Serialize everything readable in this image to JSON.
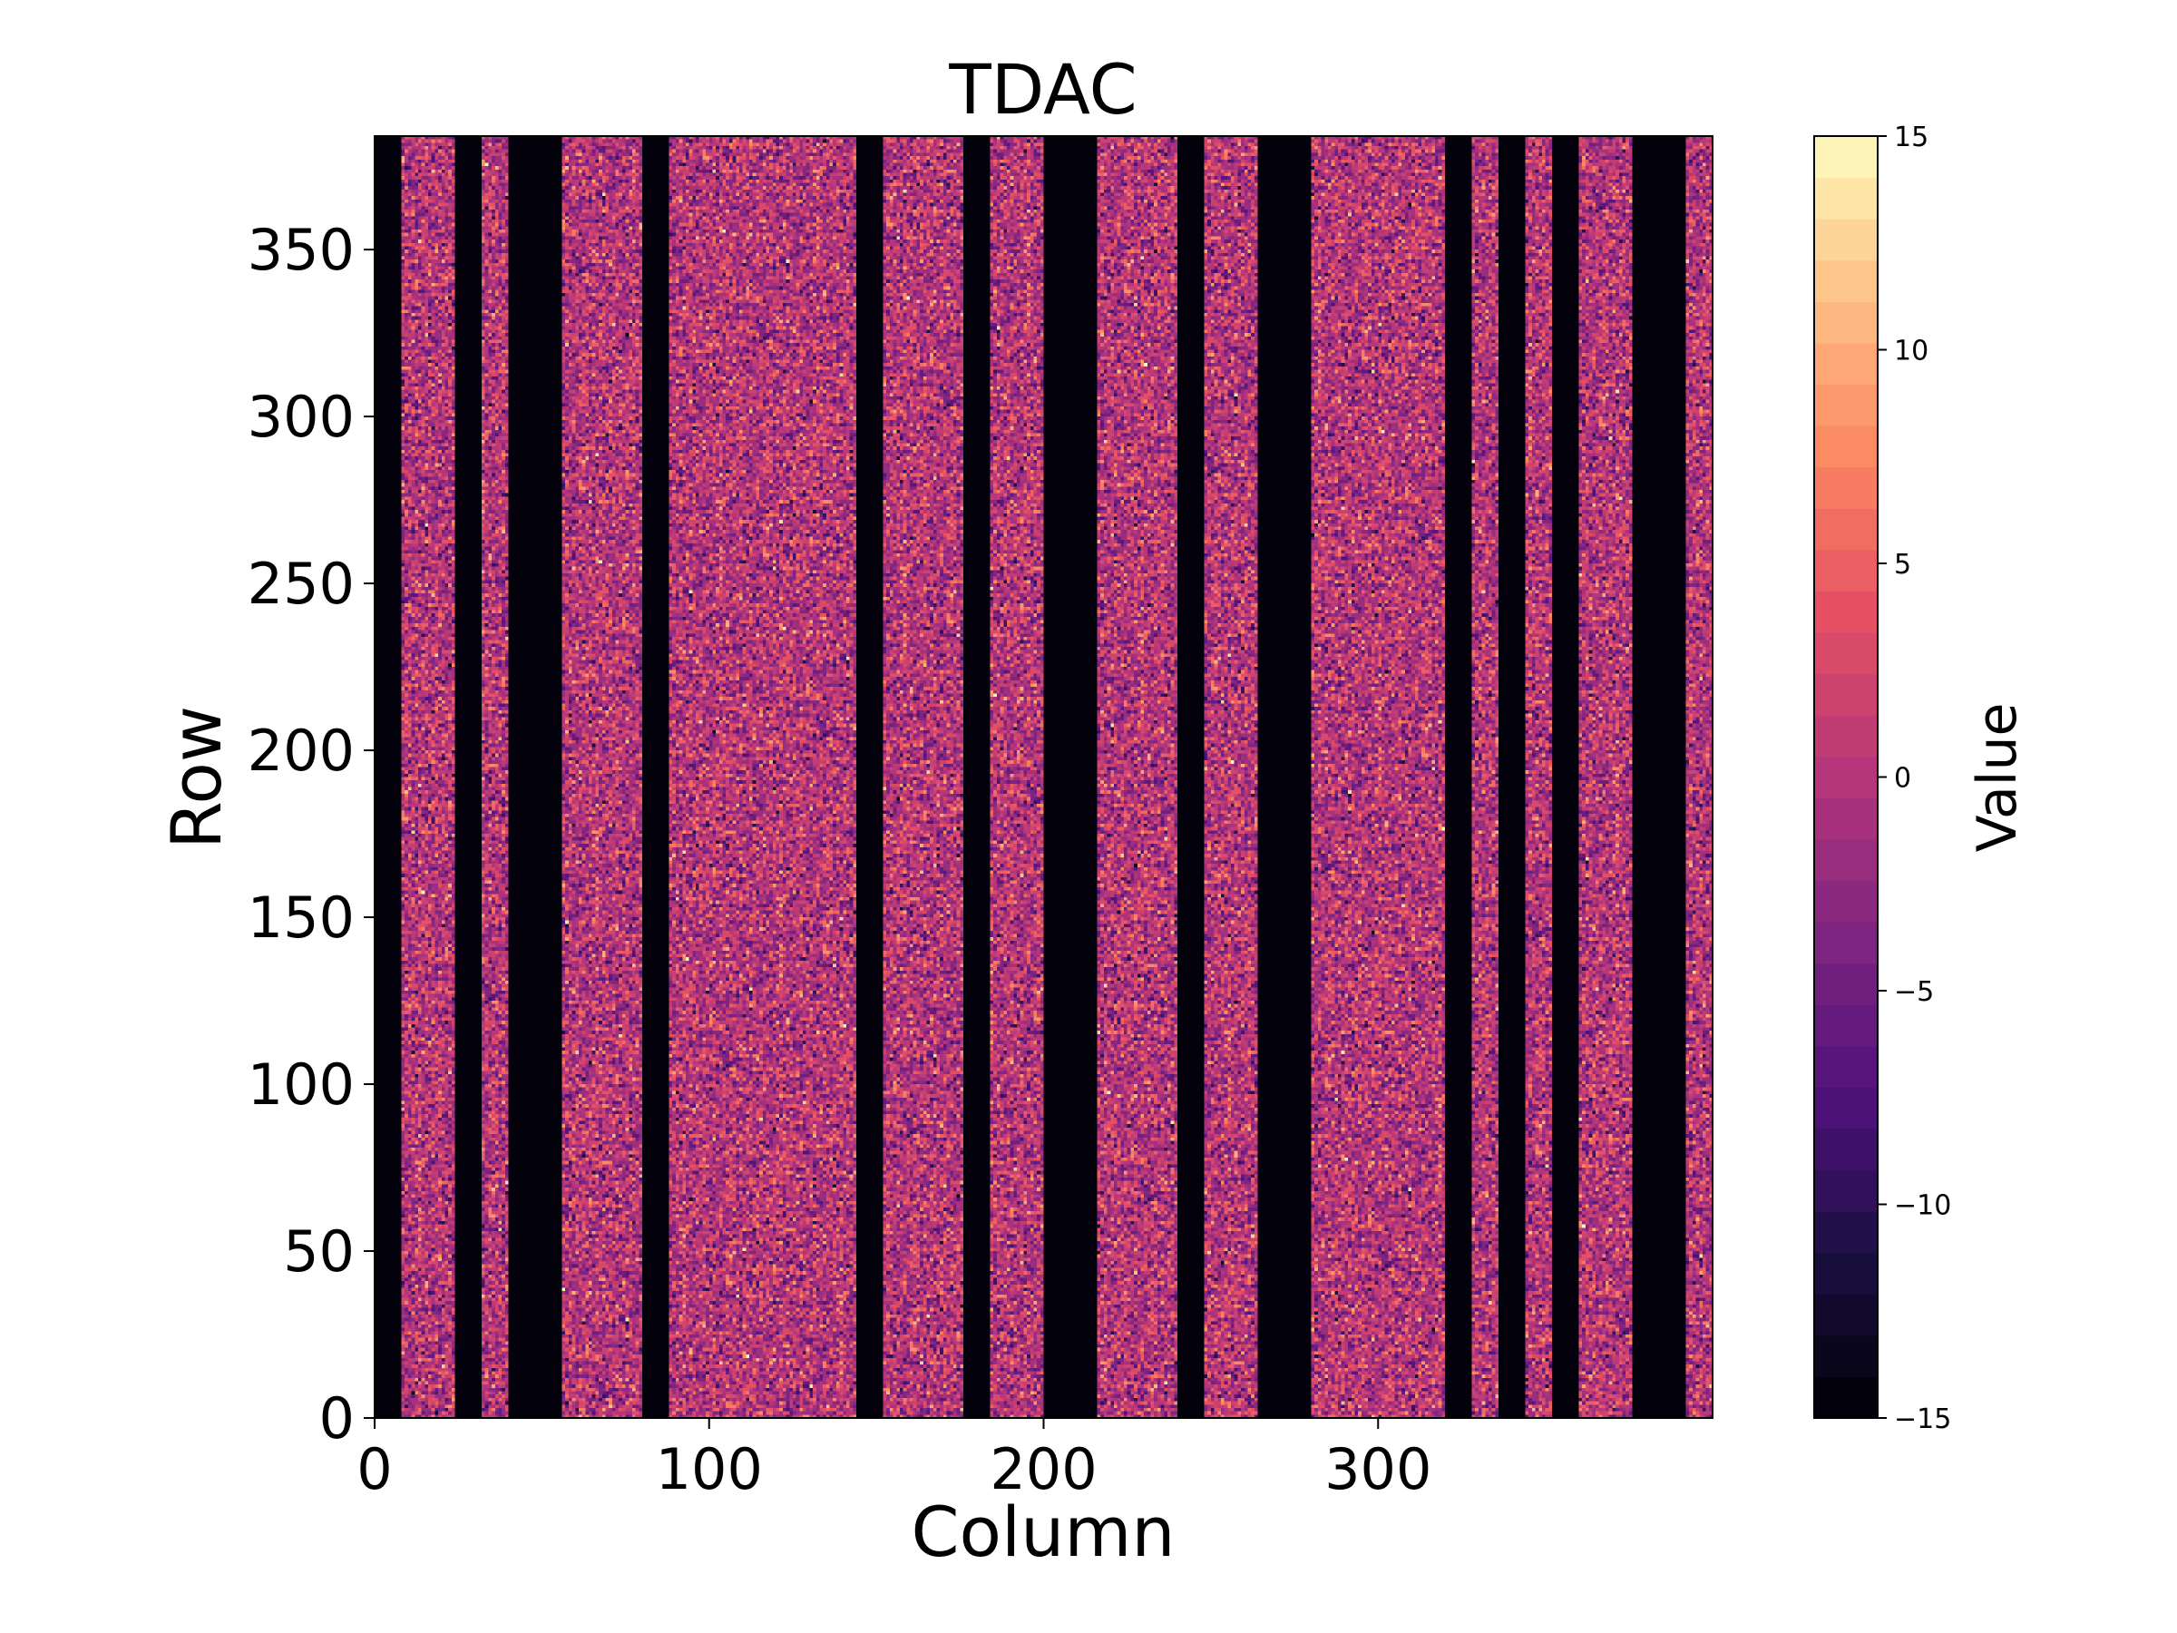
{
  "chart_data": {
    "type": "heatmap",
    "title": "TDAC",
    "xlabel": "Column",
    "ylabel": "Row",
    "colorbar_label": "Value",
    "colormap": "magma",
    "n_columns": 400,
    "n_rows": 384,
    "xlim": [
      0,
      400
    ],
    "ylim": [
      0,
      384
    ],
    "xticks": [
      0,
      100,
      200,
      300
    ],
    "xtick_labels": [
      "0",
      "100",
      "200",
      "300"
    ],
    "yticks": [
      0,
      50,
      100,
      150,
      200,
      250,
      300,
      350
    ],
    "ytick_labels": [
      "0",
      "50",
      "100",
      "150",
      "200",
      "250",
      "300",
      "350"
    ],
    "colorbar_range": [
      -15,
      15
    ],
    "colorbar_levels": 31,
    "colorbar_ticks": [
      -15,
      -10,
      -5,
      0,
      5,
      10,
      15
    ],
    "colorbar_tick_labels": [
      "−15",
      "−10",
      "−5",
      "0",
      "5",
      "10",
      "15"
    ],
    "masked_value": -15,
    "masked_column_ranges": [
      [
        0,
        8
      ],
      [
        24,
        32
      ],
      [
        40,
        56
      ],
      [
        80,
        88
      ],
      [
        144,
        152
      ],
      [
        176,
        184
      ],
      [
        200,
        216
      ],
      [
        240,
        248
      ],
      [
        264,
        280
      ],
      [
        320,
        328
      ],
      [
        336,
        344
      ],
      [
        352,
        360
      ],
      [
        376,
        392
      ]
    ],
    "typical_value_mean": 0,
    "typical_value_spread": 4
  }
}
